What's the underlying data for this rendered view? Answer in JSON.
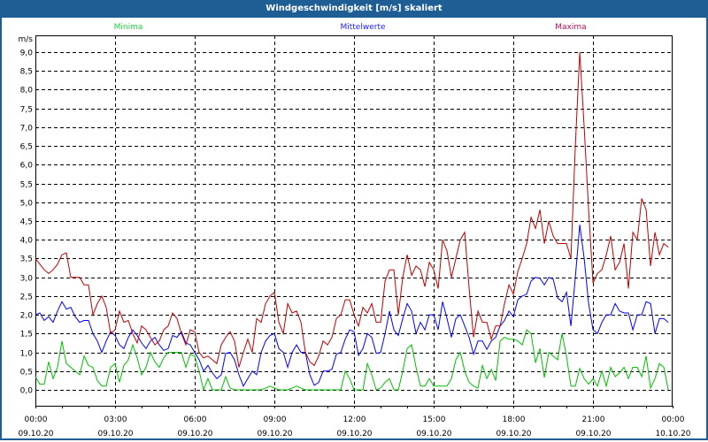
{
  "window": {
    "title": "Windgeschwindigkeit [m/s] skaliert"
  },
  "chart_data": {
    "type": "line",
    "title": "Windgeschwindigkeit [m/s] skaliert",
    "ylabel": "m/s",
    "xlabel": "",
    "ylim": [
      0,
      9.0
    ],
    "yticks": [
      "0,0",
      "0,5",
      "1,0",
      "1,5",
      "2,0",
      "2,5",
      "3,0",
      "3,5",
      "4,0",
      "4,5",
      "5,0",
      "5,5",
      "6,0",
      "6,5",
      "7,0",
      "7,5",
      "8,0",
      "8,5",
      "9,0"
    ],
    "xlim_hours": [
      0,
      24
    ],
    "x_step_hours": 0.1667,
    "xticks": [
      {
        "time": "00:00",
        "date": "09.10.20"
      },
      {
        "time": "03:00",
        "date": "09.10.20"
      },
      {
        "time": "06:00",
        "date": "09.10.20"
      },
      {
        "time": "09:00",
        "date": "09.10.20"
      },
      {
        "time": "12:00",
        "date": "09.10.20"
      },
      {
        "time": "15:00",
        "date": "09.10.20"
      },
      {
        "time": "18:00",
        "date": "09.10.20"
      },
      {
        "time": "21:00",
        "date": "09.10.20"
      },
      {
        "time": "00:00",
        "date": "10.10.20"
      }
    ],
    "grid": true,
    "legend_placement": "top",
    "series": [
      {
        "name": "Minima",
        "color": "#00c000",
        "legend_color": "#20d040",
        "values": [
          0.35,
          0.15,
          0.15,
          0.75,
          0.3,
          0.6,
          1.3,
          0.7,
          0.6,
          0.5,
          0.4,
          0.9,
          0.65,
          0.6,
          0.25,
          0.1,
          0.1,
          0.6,
          0.7,
          0.2,
          0.65,
          0.8,
          1.2,
          0.85,
          0.4,
          0.6,
          1.0,
          0.75,
          0.6,
          0.85,
          1.0,
          1.0,
          1.0,
          1.0,
          0.6,
          0.95,
          0.9,
          0.5,
          0.0,
          0.3,
          0,
          0,
          0,
          0.35,
          0.05,
          0,
          0,
          0,
          0,
          0,
          0,
          0,
          0.05,
          0.1,
          0.05,
          0,
          0,
          0,
          0.05,
          0.1,
          0.05,
          0,
          0,
          0,
          0,
          0,
          0,
          0,
          0,
          0,
          0.5,
          0.3,
          0,
          0,
          0,
          0.7,
          0.4,
          0,
          0.05,
          0.2,
          0.3,
          0,
          0,
          0.5,
          1.1,
          1.2,
          0.6,
          0.1,
          0.1,
          0.3,
          0.1,
          0.1,
          0.1,
          0.1,
          0.3,
          0.8,
          1.0,
          0.5,
          0.2,
          0.1,
          0.05,
          0.65,
          0.3,
          0.55,
          0.25,
          1.3,
          1.4,
          1.35,
          1.35,
          1.3,
          1.2,
          1.6,
          1.5,
          0.72,
          1.1,
          0.33,
          1.0,
          0.9,
          0.8,
          1.5,
          0.9,
          0.1,
          0.1,
          0.57,
          0.3,
          0.15,
          0.3,
          0.1,
          0.5,
          0.1,
          0.6,
          0.35,
          0.45,
          0.6,
          0.3,
          0.6,
          0.6,
          0.35,
          0.9,
          0.05,
          0.3,
          0.7,
          0.6,
          0.0
        ]
      },
      {
        "name": "Mittelwerte",
        "color": "#0000ff",
        "legend_color": "#2020ff",
        "values": [
          2.0,
          2.05,
          1.85,
          1.95,
          1.8,
          2.1,
          2.35,
          2.15,
          2.2,
          1.95,
          1.8,
          1.85,
          1.85,
          1.5,
          1.3,
          1.0,
          1.3,
          1.55,
          1.45,
          1.2,
          1.1,
          1.4,
          1.6,
          1.45,
          1.25,
          1.1,
          1.3,
          1.4,
          1.2,
          1.05,
          1.1,
          1.45,
          1.4,
          1.55,
          1.25,
          1.2,
          1.0,
          0.8,
          0.5,
          0.65,
          0.45,
          0.3,
          0.4,
          0.97,
          1.0,
          0.8,
          0.4,
          0.1,
          0.3,
          0.5,
          0.4,
          1.0,
          1.3,
          1.45,
          1.5,
          1.1,
          1.0,
          0.6,
          1.0,
          1.2,
          1.0,
          1.0,
          0.4,
          0.12,
          0.2,
          0.5,
          0.5,
          0.55,
          0.95,
          1.0,
          1.35,
          1.6,
          1.55,
          0.92,
          1.1,
          1.5,
          1.4,
          0.97,
          1.0,
          1.5,
          2.1,
          1.6,
          1.45,
          1.9,
          2.3,
          2.1,
          1.5,
          1.8,
          1.6,
          2.0,
          2.0,
          1.6,
          2.35,
          1.9,
          1.4,
          1.9,
          2.0,
          1.7,
          1.4,
          0.95,
          1.3,
          1.3,
          1.08,
          1.3,
          1.4,
          1.7,
          1.85,
          2.1,
          1.95,
          2.4,
          2.5,
          2.55,
          2.9,
          3.0,
          2.97,
          2.8,
          3.0,
          2.95,
          2.45,
          2.35,
          2.6,
          1.7,
          3.0,
          4.4,
          3.5,
          2.3,
          1.6,
          1.5,
          1.8,
          2.0,
          2.0,
          2.3,
          2.1,
          2.05,
          2.05,
          1.6,
          2.0,
          2.0,
          2.35,
          2.3,
          1.5,
          1.9,
          1.9,
          1.8
        ]
      },
      {
        "name": "Maxima",
        "color": "#c00000",
        "legend_color": "#b0105a",
        "values": [
          3.5,
          3.35,
          3.2,
          3.1,
          3.2,
          3.35,
          3.6,
          3.65,
          3.0,
          3.0,
          3.0,
          2.8,
          2.8,
          2.0,
          2.3,
          2.5,
          2.2,
          1.5,
          1.6,
          2.1,
          1.8,
          1.85,
          1.5,
          1.25,
          1.7,
          1.6,
          1.4,
          1.2,
          1.3,
          1.6,
          1.7,
          2.05,
          1.9,
          1.5,
          1.2,
          1.6,
          1.55,
          1.0,
          0.85,
          0.9,
          0.8,
          0.7,
          1.2,
          1.4,
          1.55,
          1.3,
          0.6,
          1.0,
          1.35,
          1.0,
          1.9,
          1.8,
          2.3,
          2.5,
          2.6,
          1.8,
          1.5,
          2.3,
          2.05,
          2.1,
          1.8,
          1.0,
          0.75,
          0.65,
          0.9,
          1.3,
          1.2,
          1.4,
          1.9,
          2.0,
          2.4,
          2.4,
          2.0,
          1.7,
          2.2,
          2.05,
          2.3,
          1.8,
          1.8,
          2.9,
          3.2,
          3.2,
          2.0,
          3.0,
          3.6,
          3.05,
          3.3,
          3.2,
          2.75,
          3.4,
          3.2,
          2.7,
          4.0,
          3.7,
          3.0,
          3.5,
          4.0,
          4.2,
          2.7,
          1.4,
          2.1,
          1.8,
          1.8,
          1.35,
          1.7,
          1.7,
          2.3,
          2.8,
          2.55,
          3.15,
          3.5,
          3.9,
          4.6,
          4.3,
          4.8,
          3.9,
          4.5,
          4.1,
          3.9,
          3.9,
          3.9,
          3.5,
          6.5,
          9.0,
          7.0,
          4.8,
          2.85,
          3.1,
          3.2,
          3.6,
          4.1,
          3.2,
          3.4,
          3.9,
          2.7,
          4.2,
          4.0,
          5.1,
          4.8,
          3.3,
          4.2,
          3.6,
          3.9,
          3.8
        ]
      }
    ]
  }
}
